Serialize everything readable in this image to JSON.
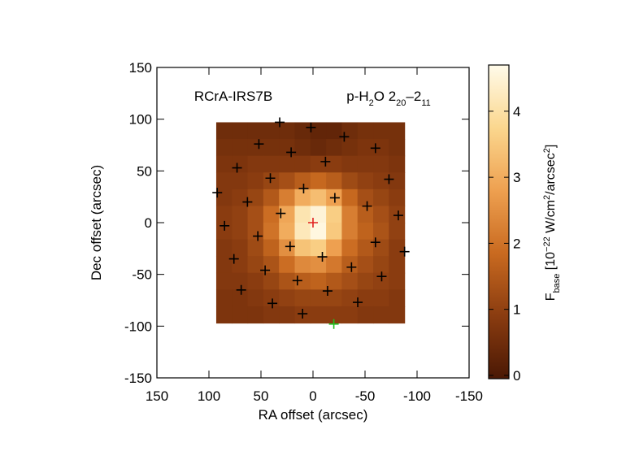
{
  "chart_data": {
    "type": "heatmap",
    "source_label": "RCrA-IRS7B",
    "line_label_parts": [
      {
        "text": "p-H"
      },
      {
        "text": "2",
        "sub": true
      },
      {
        "text": "O 2"
      },
      {
        "text": "20",
        "sub": true
      },
      {
        "text": "–2"
      },
      {
        "text": "11",
        "sub": true
      }
    ],
    "xlabel": "RA offset (arcsec)",
    "ylabel": "Dec offset (arcsec)",
    "colorbar_label_parts": [
      {
        "text": "F"
      },
      {
        "text": "base",
        "sub": true
      },
      {
        "text": " [10"
      },
      {
        "text": "−22",
        "sup": true
      },
      {
        "text": " W/cm"
      },
      {
        "text": "2",
        "sup": true
      },
      {
        "text": "/arcsec"
      },
      {
        "text": "2",
        "sup": true
      },
      {
        "text": "]"
      }
    ],
    "xlim": [
      150,
      -150
    ],
    "ylim": [
      -150,
      150
    ],
    "xticks": [
      150,
      100,
      50,
      0,
      -50,
      -100,
      -150
    ],
    "yticks": [
      -150,
      -100,
      -50,
      0,
      50,
      100,
      150
    ],
    "x_range": [
      93,
      -88
    ],
    "y_range": [
      97,
      -97
    ],
    "z": [
      [
        0.5,
        0.5,
        0.5,
        0.5,
        0.5,
        0.4,
        0.3,
        0.3,
        0.5,
        0.6,
        0.6,
        0.6
      ],
      [
        0.6,
        0.6,
        0.6,
        0.6,
        0.6,
        0.5,
        0.4,
        0.5,
        0.6,
        0.7,
        0.7,
        0.6
      ],
      [
        0.7,
        0.7,
        0.8,
        0.8,
        0.8,
        0.8,
        0.9,
        0.9,
        0.8,
        0.8,
        0.8,
        0.7
      ],
      [
        0.8,
        0.8,
        0.9,
        1.1,
        1.3,
        1.6,
        1.8,
        1.6,
        1.2,
        1.0,
        0.9,
        0.8
      ],
      [
        0.8,
        0.9,
        1.1,
        1.5,
        2.2,
        3.0,
        3.3,
        2.8,
        1.8,
        1.3,
        1.1,
        0.9
      ],
      [
        0.9,
        1.0,
        1.3,
        1.9,
        2.9,
        4.1,
        4.5,
        3.6,
        2.2,
        1.6,
        1.3,
        1.0
      ],
      [
        0.9,
        1.0,
        1.3,
        2.0,
        3.0,
        4.2,
        4.6,
        3.5,
        2.2,
        1.7,
        1.4,
        1.0
      ],
      [
        0.8,
        0.9,
        1.2,
        1.7,
        2.5,
        3.4,
        3.6,
        2.8,
        1.9,
        1.5,
        1.2,
        0.9
      ],
      [
        0.8,
        0.9,
        1.1,
        1.4,
        1.9,
        2.4,
        2.5,
        2.1,
        1.6,
        1.3,
        1.1,
        0.9
      ],
      [
        0.8,
        0.8,
        0.9,
        1.1,
        1.4,
        1.6,
        1.7,
        1.5,
        1.3,
        1.1,
        1.0,
        0.9
      ],
      [
        0.7,
        0.7,
        0.8,
        0.9,
        1.0,
        1.1,
        1.1,
        1.1,
        1.0,
        0.9,
        0.9,
        0.8
      ],
      [
        0.7,
        0.7,
        0.7,
        0.8,
        0.8,
        0.9,
        0.9,
        0.9,
        0.9,
        0.8,
        0.8,
        0.8
      ]
    ],
    "zlim": [
      -0.05,
      4.7
    ],
    "zticks": [
      0,
      1,
      2,
      3,
      4
    ],
    "colormap": [
      "#4a1804",
      "#8a3c10",
      "#c96a20",
      "#eea050",
      "#fbd78e",
      "#fffbea"
    ],
    "series": [
      {
        "color": "#000000",
        "x": [
          32,
          2,
          -30,
          52,
          -60,
          21,
          -12,
          73,
          41,
          -73,
          92,
          9,
          -21,
          63,
          -52,
          31,
          -82,
          85,
          53,
          -60,
          22,
          -88,
          76,
          -9,
          -37,
          46,
          15,
          -66,
          69,
          -14,
          39,
          -43,
          10
        ],
        "y": [
          97,
          92,
          83,
          76,
          72,
          68,
          59,
          53,
          43,
          42,
          29,
          33,
          24,
          20,
          16,
          9,
          7,
          -3,
          -13,
          -19,
          -23,
          -28,
          -35,
          -33,
          -43,
          -46,
          -56,
          -52,
          -65,
          -66,
          -78,
          -77,
          -88
        ]
      },
      {
        "color": "#e02020",
        "x": [
          0
        ],
        "y": [
          0
        ]
      },
      {
        "color": "#20c020",
        "x": [
          -20
        ],
        "y": [
          -98
        ]
      }
    ]
  }
}
